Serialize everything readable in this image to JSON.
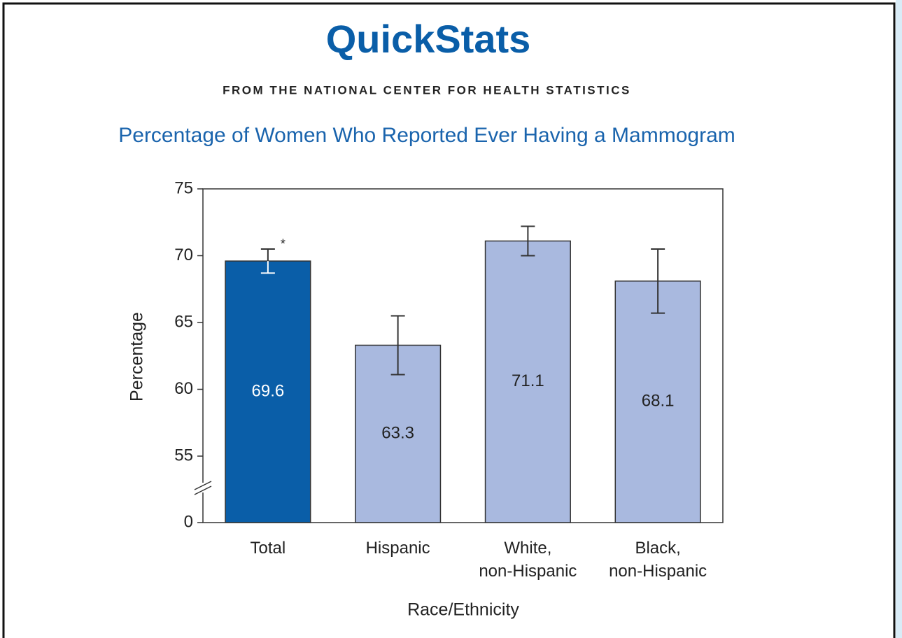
{
  "header": {
    "title": "QuickStats",
    "subtitle": "FROM THE NATIONAL CENTER FOR HEALTH STATISTICS"
  },
  "chart_data": {
    "type": "bar",
    "title": "Percentage of Women Who Reported Ever Having a Mammogram",
    "x_label": "Race/Ethnicity",
    "y_label": "Percentage",
    "categories": [
      "Total",
      "Hispanic",
      "White,\nnon-Hispanic",
      "Black,\nnon-Hispanic"
    ],
    "values": [
      69.6,
      63.3,
      71.1,
      68.1
    ],
    "errors": [
      0.9,
      2.2,
      1.1,
      2.4
    ],
    "colors": [
      "#0a5ea8",
      "#a9b9df",
      "#a9b9df",
      "#a9b9df"
    ],
    "annotations": [
      {
        "text": "*",
        "category": 0
      }
    ],
    "ylim": [
      0,
      75
    ],
    "y_break": [
      0,
      55
    ],
    "yticks": [
      0,
      55,
      60,
      65,
      70,
      75
    ],
    "grid": false
  }
}
